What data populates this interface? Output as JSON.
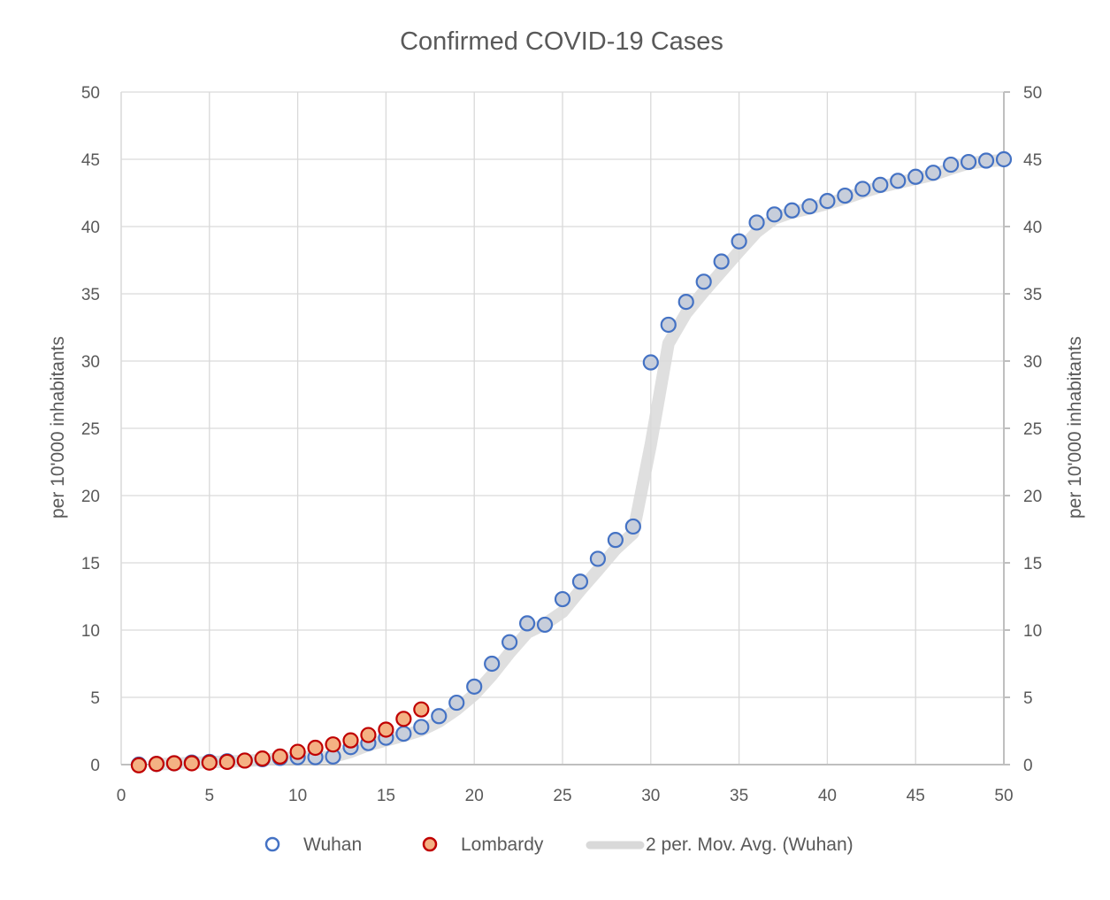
{
  "chart_data": {
    "type": "scatter",
    "title": "Confirmed COVID-19 Cases",
    "xlabel": "",
    "ylabel": "per 10'000 inhabitants",
    "ylabel_right": "per 10'000 inhabitants",
    "xlim": [
      0,
      50
    ],
    "ylim": [
      0,
      50
    ],
    "x_ticks": [
      0,
      5,
      10,
      15,
      20,
      25,
      30,
      35,
      40,
      45,
      50
    ],
    "y_ticks": [
      0,
      5,
      10,
      15,
      20,
      25,
      30,
      35,
      40,
      45,
      50
    ],
    "grid": true,
    "legend_position": "bottom",
    "series": [
      {
        "name": "Wuhan",
        "marker_fill": "#c7cedb",
        "marker_stroke": "#4472c4",
        "x": [
          1,
          2,
          3,
          4,
          5,
          6,
          7,
          8,
          9,
          10,
          11,
          12,
          13,
          14,
          15,
          16,
          17,
          18,
          19,
          20,
          21,
          22,
          23,
          24,
          25,
          26,
          27,
          28,
          29,
          30,
          31,
          32,
          33,
          34,
          35,
          36,
          37,
          38,
          39,
          40,
          41,
          42,
          43,
          44,
          45,
          46,
          47,
          48,
          49,
          50
        ],
        "y": [
          0,
          0.05,
          0.1,
          0.15,
          0.2,
          0.25,
          0.3,
          0.4,
          0.5,
          0.55,
          0.55,
          0.6,
          1.3,
          1.6,
          2.0,
          2.3,
          2.8,
          3.6,
          4.6,
          5.8,
          7.5,
          9.1,
          10.5,
          10.4,
          12.3,
          13.6,
          15.3,
          16.7,
          17.7,
          29.9,
          32.7,
          34.4,
          35.9,
          37.4,
          38.9,
          40.3,
          40.9,
          41.2,
          41.5,
          41.9,
          42.3,
          42.8,
          43.1,
          43.4,
          43.7,
          44.0,
          44.6,
          44.8,
          44.9,
          45.0
        ]
      },
      {
        "name": "Lombardy",
        "marker_fill": "#f4b183",
        "marker_stroke": "#c00000",
        "x": [
          1,
          2,
          3,
          4,
          5,
          6,
          7,
          8,
          9,
          10,
          11,
          12,
          13,
          14,
          15,
          16,
          17
        ],
        "y": [
          -0.05,
          0.05,
          0.1,
          0.1,
          0.15,
          0.2,
          0.3,
          0.45,
          0.6,
          0.95,
          1.25,
          1.5,
          1.8,
          2.2,
          2.6,
          3.4,
          4.1
        ]
      },
      {
        "name": "2 per. Mov. Avg. (Wuhan)",
        "line_color": "#d9d9d9",
        "derived_from": "Wuhan",
        "period": 2
      }
    ]
  }
}
